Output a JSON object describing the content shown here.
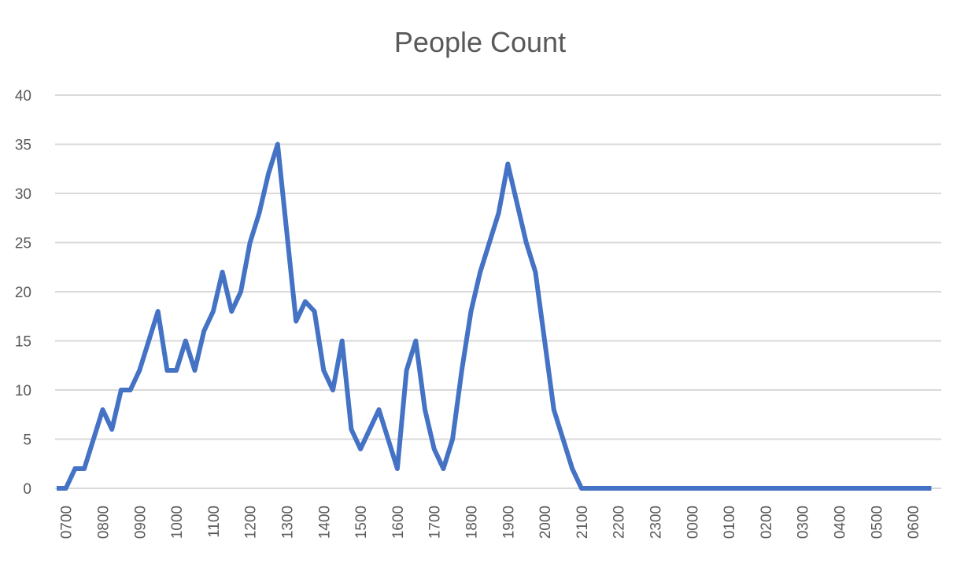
{
  "chart_data": {
    "type": "line",
    "title": "People Count",
    "xlabel": "",
    "ylabel": "",
    "ylim": [
      0,
      40
    ],
    "yticks": [
      0,
      5,
      10,
      15,
      20,
      25,
      30,
      35,
      40
    ],
    "grid": true,
    "legend": "none",
    "x_tick_labels": [
      "0700",
      "0800",
      "0900",
      "1000",
      "1100",
      "1200",
      "1300",
      "1400",
      "1500",
      "1600",
      "1700",
      "1800",
      "1900",
      "2000",
      "2100",
      "2200",
      "2300",
      "0000",
      "0100",
      "0200",
      "0300",
      "0400",
      "0500",
      "0600"
    ],
    "series": [
      {
        "color": "#4472C4",
        "values": [
          0,
          0,
          2,
          2,
          5,
          8,
          6,
          10,
          10,
          12,
          15,
          18,
          12,
          12,
          15,
          12,
          16,
          18,
          22,
          18,
          20,
          25,
          28,
          32,
          35,
          26,
          17,
          19,
          18,
          12,
          10,
          15,
          6,
          4,
          6,
          8,
          5,
          2,
          12,
          15,
          8,
          4,
          2,
          5,
          12,
          18,
          22,
          25,
          28,
          33,
          29,
          25,
          22,
          15,
          8,
          5,
          2,
          0,
          0,
          0,
          0,
          0,
          0,
          0,
          0,
          0,
          0,
          0,
          0,
          0,
          0,
          0,
          0,
          0,
          0,
          0,
          0,
          0,
          0,
          0,
          0,
          0,
          0,
          0,
          0,
          0,
          0,
          0,
          0,
          0,
          0,
          0,
          0,
          0,
          0,
          0
        ]
      }
    ]
  }
}
